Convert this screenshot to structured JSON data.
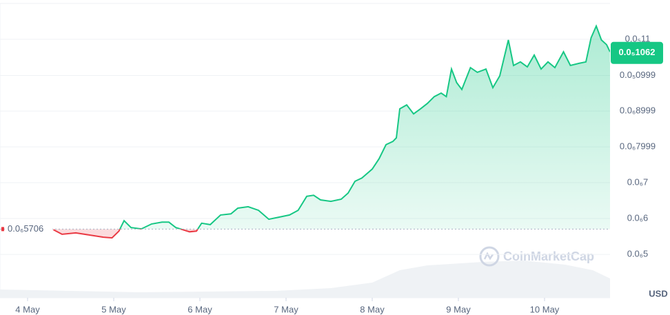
{
  "chart_data": {
    "type": "line",
    "x": [
      4.3,
      4.4,
      4.56,
      4.72,
      4.88,
      4.98,
      5.06,
      5.12,
      5.2,
      5.32,
      5.44,
      5.56,
      5.64,
      5.72,
      5.8,
      5.88,
      5.96,
      6.02,
      6.12,
      6.24,
      6.36,
      6.44,
      6.56,
      6.68,
      6.8,
      6.92,
      7.04,
      7.14,
      7.24,
      7.32,
      7.4,
      7.52,
      7.64,
      7.72,
      7.8,
      7.88,
      8.0,
      8.08,
      8.16,
      8.24,
      8.28,
      8.32,
      8.4,
      8.48,
      8.56,
      8.64,
      8.72,
      8.8,
      8.86,
      8.92,
      8.98,
      9.04,
      9.14,
      9.22,
      9.32,
      9.4,
      9.48,
      9.58,
      9.64,
      9.72,
      9.8,
      9.88,
      9.96,
      10.04,
      10.12,
      10.22,
      10.3,
      10.4,
      10.48,
      10.54,
      10.6,
      10.66,
      10.72,
      10.76
    ],
    "series": [
      {
        "color": "#16c784",
        "below_color": "#ea3943",
        "values": [
          5.69e-07,
          5.56e-07,
          5.6e-07,
          5.54e-07,
          5.48e-07,
          5.46e-07,
          5.65e-07,
          5.94e-07,
          5.75e-07,
          5.71e-07,
          5.85e-07,
          5.9e-07,
          5.9e-07,
          5.75e-07,
          5.69e-07,
          5.63e-07,
          5.65e-07,
          5.87e-07,
          5.83e-07,
          6.1e-07,
          6.13e-07,
          6.29e-07,
          6.33e-07,
          6.23e-07,
          5.98e-07,
          6.04e-07,
          6.1e-07,
          6.23e-07,
          6.62e-07,
          6.65e-07,
          6.52e-07,
          6.48e-07,
          6.54e-07,
          6.71e-07,
          7.04e-07,
          7.13e-07,
          7.38e-07,
          7.67e-07,
          8.06e-07,
          8.15e-07,
          8.25e-07,
          9.06e-07,
          9.17e-07,
          8.92e-07,
          9.06e-07,
          9.21e-07,
          9.4e-07,
          9.5e-07,
          9.4e-07,
          1.017e-06,
          9.79e-07,
          9.6e-07,
          1.021e-06,
          1.008e-06,
          1.017e-06,
          9.65e-07,
          9.98e-07,
          1.098e-06,
          1.027e-06,
          1.037e-06,
          1.023e-06,
          1.056e-06,
          1.017e-06,
          1.037e-06,
          1.021e-06,
          1.065e-06,
          1.027e-06,
          1.033e-06,
          1.037e-06,
          1.104e-06,
          1.137e-06,
          1.098e-06,
          1.085e-06,
          1.065e-06
        ]
      }
    ],
    "baseline": {
      "value": 5.706e-07,
      "label": "0.0₆5706"
    },
    "current": {
      "value": 1.062e-06,
      "label": "0.0₅1062"
    },
    "xlim": [
      3.68,
      10.76
    ],
    "xticks": [
      {
        "value": 4,
        "label": "4 May"
      },
      {
        "value": 5,
        "label": "5 May"
      },
      {
        "value": 6,
        "label": "6 May"
      },
      {
        "value": 7,
        "label": "7 May"
      },
      {
        "value": 8,
        "label": "8 May"
      },
      {
        "value": 9,
        "label": "9 May"
      },
      {
        "value": 10,
        "label": "10 May"
      }
    ],
    "ylim": [
      3.79e-07,
      1.2e-06
    ],
    "yticks": [
      {
        "value": 1.1e-06,
        "label": "0.0₅11"
      },
      {
        "value": 9.99e-07,
        "label": "0.0₅0999"
      },
      {
        "value": 8.999e-07,
        "label": "0.0₆8999"
      },
      {
        "value": 7.999e-07,
        "label": "0.0₆7999"
      },
      {
        "value": 7e-07,
        "label": "0.0₆7"
      },
      {
        "value": 6e-07,
        "label": "0.0₆6"
      },
      {
        "value": 5e-07,
        "label": "0.0₆5"
      }
    ],
    "grid": true,
    "currency": "USD",
    "watermark": "CoinMarketCap"
  }
}
